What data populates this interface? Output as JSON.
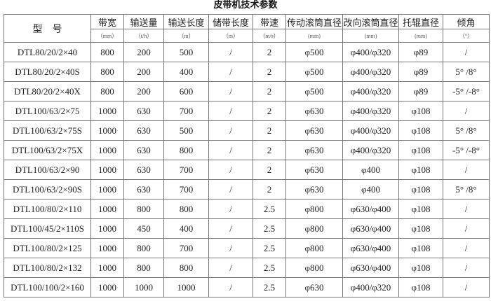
{
  "title": "皮带机技术参数",
  "headers": [
    {
      "label": "型　号",
      "unit": ""
    },
    {
      "label": "带宽",
      "unit": "（mm）"
    },
    {
      "label": "输送量",
      "unit": "（t/h）"
    },
    {
      "label": "输送长度",
      "unit": "（m）"
    },
    {
      "label": "储带长度",
      "unit": "（m）"
    },
    {
      "label": "带速",
      "unit": "（m/s）"
    },
    {
      "label": "传动滚筒直径",
      "unit": "(mm)"
    },
    {
      "label": "改向滚筒直径",
      "unit": "(mm)"
    },
    {
      "label": "托辊直径",
      "unit": "(mm)"
    },
    {
      "label": "倾角",
      "unit": "（°）"
    }
  ],
  "rows": [
    [
      "DTL80/20/2×40",
      "800",
      "200",
      "500",
      "/",
      "2",
      "φ500",
      "φ400/φ320",
      "φ89",
      "/"
    ],
    [
      "DTL80/20/2×40S",
      "800",
      "200",
      "400",
      "/",
      "2",
      "φ500",
      "φ400/φ320",
      "φ89",
      "5° /8°"
    ],
    [
      "DTL80/20/2×40X",
      "800",
      "200",
      "600",
      "/",
      "2",
      "φ500",
      "φ400/φ320",
      "φ89",
      "-5° /-8°"
    ],
    [
      "DTL100/63/2×75",
      "1000",
      "630",
      "700",
      "/",
      "2",
      "φ630",
      "φ400/φ320",
      "φ108",
      "/"
    ],
    [
      "DTL100/63/2×75S",
      "1000",
      "630",
      "500",
      "/",
      "2",
      "φ630",
      "φ400/φ320",
      "φ108",
      "5° /8°"
    ],
    [
      "DTL100/63/2×75X",
      "1000",
      "630",
      "800",
      "/",
      "2",
      "φ630",
      "φ400/φ320",
      "φ108",
      "-5° /-8°"
    ],
    [
      "DTL100/63/2×90",
      "1000",
      "630",
      "700",
      "/",
      "2",
      "φ630",
      "φ400",
      "φ108",
      "/"
    ],
    [
      "DTL100/63/2×90S",
      "1000",
      "630",
      "700",
      "/",
      "2",
      "φ630",
      "φ400",
      "φ108",
      "5° /8°"
    ],
    [
      "DTL100/80/2×110",
      "1000",
      "800",
      "800",
      "/",
      "2.5",
      "φ800",
      "φ630/φ400",
      "φ108",
      "/"
    ],
    [
      "DTL100/45/2×110S",
      "1000",
      "450",
      "400",
      "/",
      "2.5",
      "φ800",
      "φ630/φ400",
      "φ108",
      "/"
    ],
    [
      "DTL100/80/2×125",
      "1000",
      "800",
      "700",
      "/",
      "2.5",
      "φ800",
      "φ630/φ400",
      "φ108",
      "/"
    ],
    [
      "DTL100/80/2×132",
      "1000",
      "800",
      "800",
      "/",
      "2.5",
      "φ800",
      "φ630/φ400",
      "φ108",
      "/"
    ],
    [
      "DTL100/100/2×160",
      "1000",
      "1000",
      "1000",
      "/",
      "2.5",
      "φ630",
      "φ400/φ320",
      "φ108",
      "/"
    ]
  ]
}
